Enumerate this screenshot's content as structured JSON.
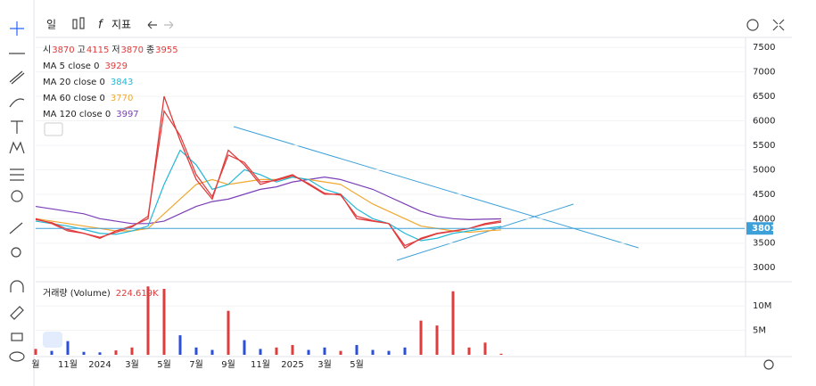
{
  "toolbar": {
    "interval": "일",
    "indicators": "지표"
  },
  "chart_data": [
    {
      "type": "line",
      "name": "price",
      "ohlc": {
        "labels": [
          "시",
          "고",
          "저",
          "종"
        ],
        "values": [
          3870,
          4115,
          3870,
          3955
        ]
      },
      "categories": [
        "월",
        null,
        "11월",
        null,
        "2024",
        null,
        "3월",
        null,
        "5월",
        null,
        "7월",
        null,
        "9월",
        null,
        "11월",
        null,
        "2025",
        null,
        "3월",
        null,
        "5월",
        null,
        null,
        null,
        null,
        null,
        null,
        null,
        null,
        null,
        null,
        null,
        null,
        null,
        null,
        null,
        null,
        null,
        null,
        null,
        null
      ],
      "values": [
        4000,
        3900,
        3750,
        3700,
        3600,
        3750,
        3850,
        4000,
        6500,
        5600,
        4800,
        4400,
        5400,
        5100,
        4700,
        4800,
        4900,
        4700,
        4500,
        4500,
        4000,
        3950,
        3900,
        3400,
        3600,
        3700,
        3750,
        3800,
        3900,
        3955,
        null,
        null,
        null,
        null,
        null,
        null,
        null,
        null,
        null,
        null,
        null
      ],
      "color": "#e03c3c",
      "series": [
        {
          "name": "MA 5 close 0",
          "last": 3929,
          "color": "#e03c3c",
          "values": [
            3980,
            3920,
            3780,
            3700,
            3620,
            3720,
            3830,
            4050,
            6200,
            5700,
            4900,
            4450,
            5300,
            5150,
            4750,
            4780,
            4880,
            4720,
            4520,
            4480,
            4050,
            3960,
            3900,
            3450,
            3580,
            3690,
            3740,
            3800,
            3880,
            3929,
            null,
            null,
            null,
            null,
            null,
            null,
            null,
            null,
            null,
            null,
            null
          ]
        },
        {
          "name": "MA 20 close 0",
          "last": 3843,
          "color": "#22b7d6",
          "values": [
            3950,
            3900,
            3850,
            3780,
            3700,
            3680,
            3750,
            3850,
            4700,
            5400,
            5100,
            4600,
            4700,
            5000,
            4900,
            4750,
            4850,
            4800,
            4600,
            4500,
            4200,
            4000,
            3900,
            3700,
            3550,
            3600,
            3700,
            3750,
            3800,
            3843,
            null,
            null,
            null,
            null,
            null,
            null,
            null,
            null,
            null,
            null,
            null
          ]
        },
        {
          "name": "MA 60 close 0",
          "last": 3770,
          "color": "#f0a830",
          "values": [
            4000,
            3950,
            3900,
            3850,
            3800,
            3750,
            3750,
            3800,
            4100,
            4400,
            4700,
            4800,
            4700,
            4750,
            4800,
            4800,
            4850,
            4800,
            4750,
            4700,
            4500,
            4300,
            4150,
            4000,
            3850,
            3800,
            3750,
            3720,
            3750,
            3770,
            null,
            null,
            null,
            null,
            null,
            null,
            null,
            null,
            null,
            null,
            null
          ]
        },
        {
          "name": "MA 120 close 0",
          "last": 3997,
          "color": "#7b3fb8",
          "values": [
            4250,
            4200,
            4150,
            4100,
            4000,
            3950,
            3900,
            3900,
            3950,
            4100,
            4250,
            4350,
            4400,
            4500,
            4600,
            4650,
            4750,
            4800,
            4850,
            4800,
            4700,
            4600,
            4450,
            4300,
            4150,
            4050,
            4000,
            3980,
            3990,
            3997,
            null,
            null,
            null,
            null,
            null,
            null,
            null,
            null,
            null,
            null,
            null
          ]
        }
      ],
      "price_line": 3801,
      "ylim": [
        2730,
        7650
      ],
      "yticks": [
        3000,
        3500,
        4000,
        4500,
        5000,
        5500,
        6000,
        6500,
        7000,
        7500
      ]
    },
    {
      "type": "bar",
      "name": "거래량 (Volume)",
      "color_up": "#e03c3c",
      "color_down": "#2b4fd8",
      "values": [
        1200000,
        800000,
        2800000,
        600000,
        500000,
        900000,
        1500000,
        14000000,
        13500000,
        4000000,
        1500000,
        1000000,
        9000000,
        3000000,
        1200000,
        1500000,
        2000000,
        1000000,
        1500000,
        800000,
        2000000,
        1000000,
        800000,
        1500000,
        7000000,
        6000000,
        13000000,
        1500000,
        2500000,
        224619
      ],
      "last_label": "224.619K",
      "ylim": [
        0,
        14600000
      ],
      "yticks": [
        {
          "value": 5000000,
          "label": "5M"
        },
        {
          "value": 10000000,
          "label": "10M"
        }
      ]
    }
  ]
}
